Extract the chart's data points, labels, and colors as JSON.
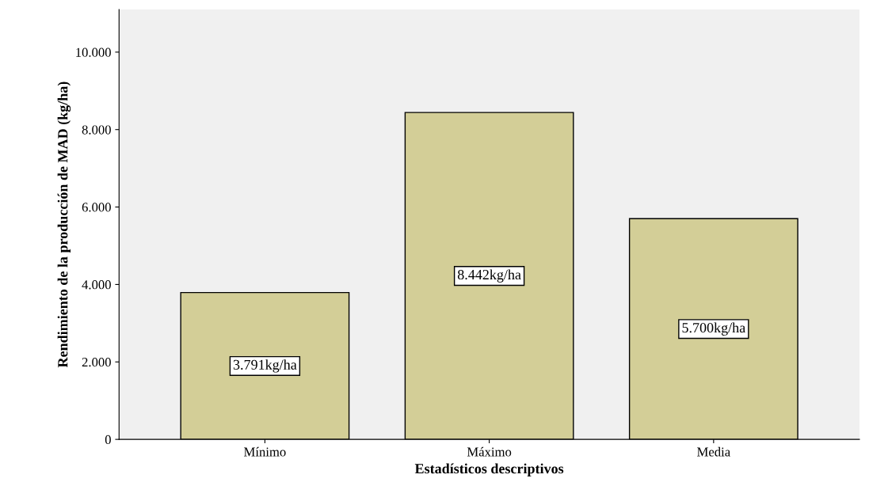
{
  "chart_data": {
    "type": "bar",
    "xlabel": "Estadísticos descriptivos",
    "ylabel": "Rendimiento de la producción de MAD (kg/ha)",
    "categories": [
      "Mínimo",
      "Máximo",
      "Media"
    ],
    "values": [
      3791,
      8442,
      5700
    ],
    "value_labels": [
      "3.791kg/ha",
      "8.442kg/ha",
      "5.700kg/ha"
    ],
    "color": "#d3ce97",
    "ylim": [
      0,
      11100
    ],
    "yticks": [
      0,
      {
        "value": 2000,
        "label": "2.000"
      },
      {
        "value": 4000,
        "label": "4.000"
      },
      {
        "value": 6000,
        "label": "6.000"
      },
      {
        "value": 8000,
        "label": "8.000"
      },
      {
        "value": 10000,
        "label": "10.000"
      }
    ],
    "grid": false
  }
}
